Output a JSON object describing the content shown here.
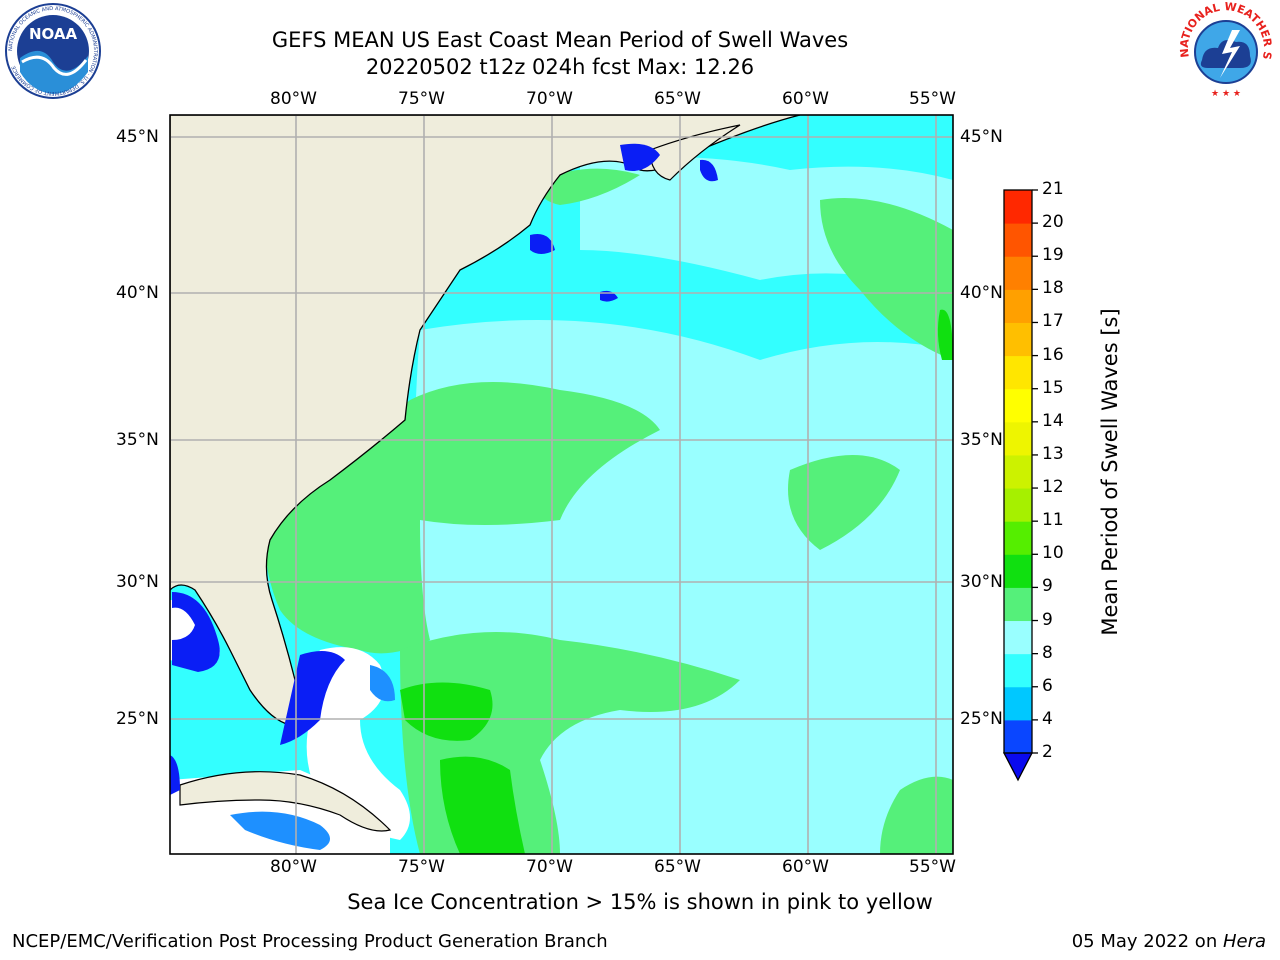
{
  "title": {
    "line1": "GEFS MEAN US East Coast Mean Period of Swell Waves",
    "line2": "20220502 t12z 024h fcst   Max: 12.26"
  },
  "logos": {
    "noaa": {
      "text": "NOAA",
      "ring": "NATIONAL OCEANIC AND ATMOSPHERIC ADMINISTRATION · U.S. DEPARTMENT OF COMMERCE"
    },
    "nws": {
      "ring": "NATIONAL WEATHER SERVICE"
    }
  },
  "map": {
    "lon_labels": [
      "80°W",
      "75°W",
      "70°W",
      "65°W",
      "60°W",
      "55°W"
    ],
    "lat_labels": [
      "45°N",
      "40°N",
      "35°N",
      "30°N",
      "25°N"
    ],
    "lon_range": [
      -85,
      -54
    ],
    "lat_range": [
      20.5,
      45.8
    ],
    "colors": {
      "land": "#efeddc",
      "sea_cyan": "#33ffff",
      "sea_light": "#99ffff",
      "sea_green": "#55f07a",
      "deep_green": "#10e010",
      "blue": "#0a1ef5",
      "mid_blue": "#1e90ff"
    }
  },
  "colorbar": {
    "title": "Mean Period of Swell Waves [s]",
    "ticks": [
      "2",
      "4",
      "6",
      "8",
      "9",
      "9",
      "10",
      "11",
      "12",
      "13",
      "14",
      "15",
      "16",
      "17",
      "18",
      "19",
      "20",
      "21"
    ],
    "colors": [
      "#0a46ff",
      "#00c8ff",
      "#33ffff",
      "#99ffff",
      "#55f07a",
      "#10e010",
      "#55ee00",
      "#a6f000",
      "#ccf200",
      "#eef500",
      "#ffff00",
      "#ffe600",
      "#ffbf00",
      "#ffa000",
      "#ff8000",
      "#ff5500",
      "#ff2800",
      "#ff0000"
    ],
    "extend_color": "#0a0aef"
  },
  "note": "Sea Ice Concentration > 15% is shown in pink to yellow",
  "footer": {
    "left": "NCEP/EMC/Verification Post Processing Product Generation Branch",
    "right_prefix": "05 May 2022 on ",
    "right_host": "Hera"
  }
}
